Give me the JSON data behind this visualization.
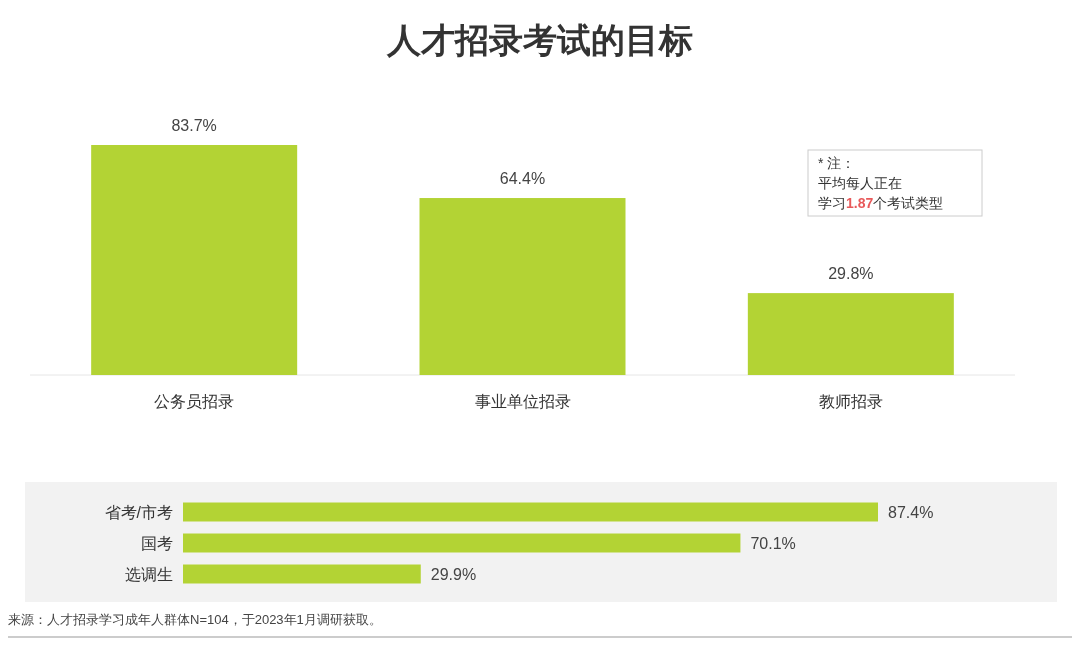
{
  "chart_data": [
    {
      "type": "bar",
      "title": "人才招录考试的目标",
      "categories": [
        "公务员招录",
        "事业单位招录",
        "教师招录"
      ],
      "values": [
        83.7,
        64.4,
        29.8
      ],
      "value_labels": [
        "83.7%",
        "64.4%",
        "29.8%"
      ],
      "color": "#b3d334",
      "annotations": [
        "* 注：",
        "平均每人正在",
        "学习1.87个考试类型"
      ]
    },
    {
      "type": "bar",
      "orientation": "horizontal",
      "categories": [
        "省考/市考",
        "国考",
        "选调生"
      ],
      "values": [
        87.4,
        70.1,
        29.9
      ],
      "value_labels": [
        "87.4%",
        "70.1%",
        "29.9%"
      ],
      "color": "#b3d334",
      "annotations": [
        "来源：人才招录学习成年人群体N=104，于2023年1月调研获取。"
      ]
    }
  ]
}
